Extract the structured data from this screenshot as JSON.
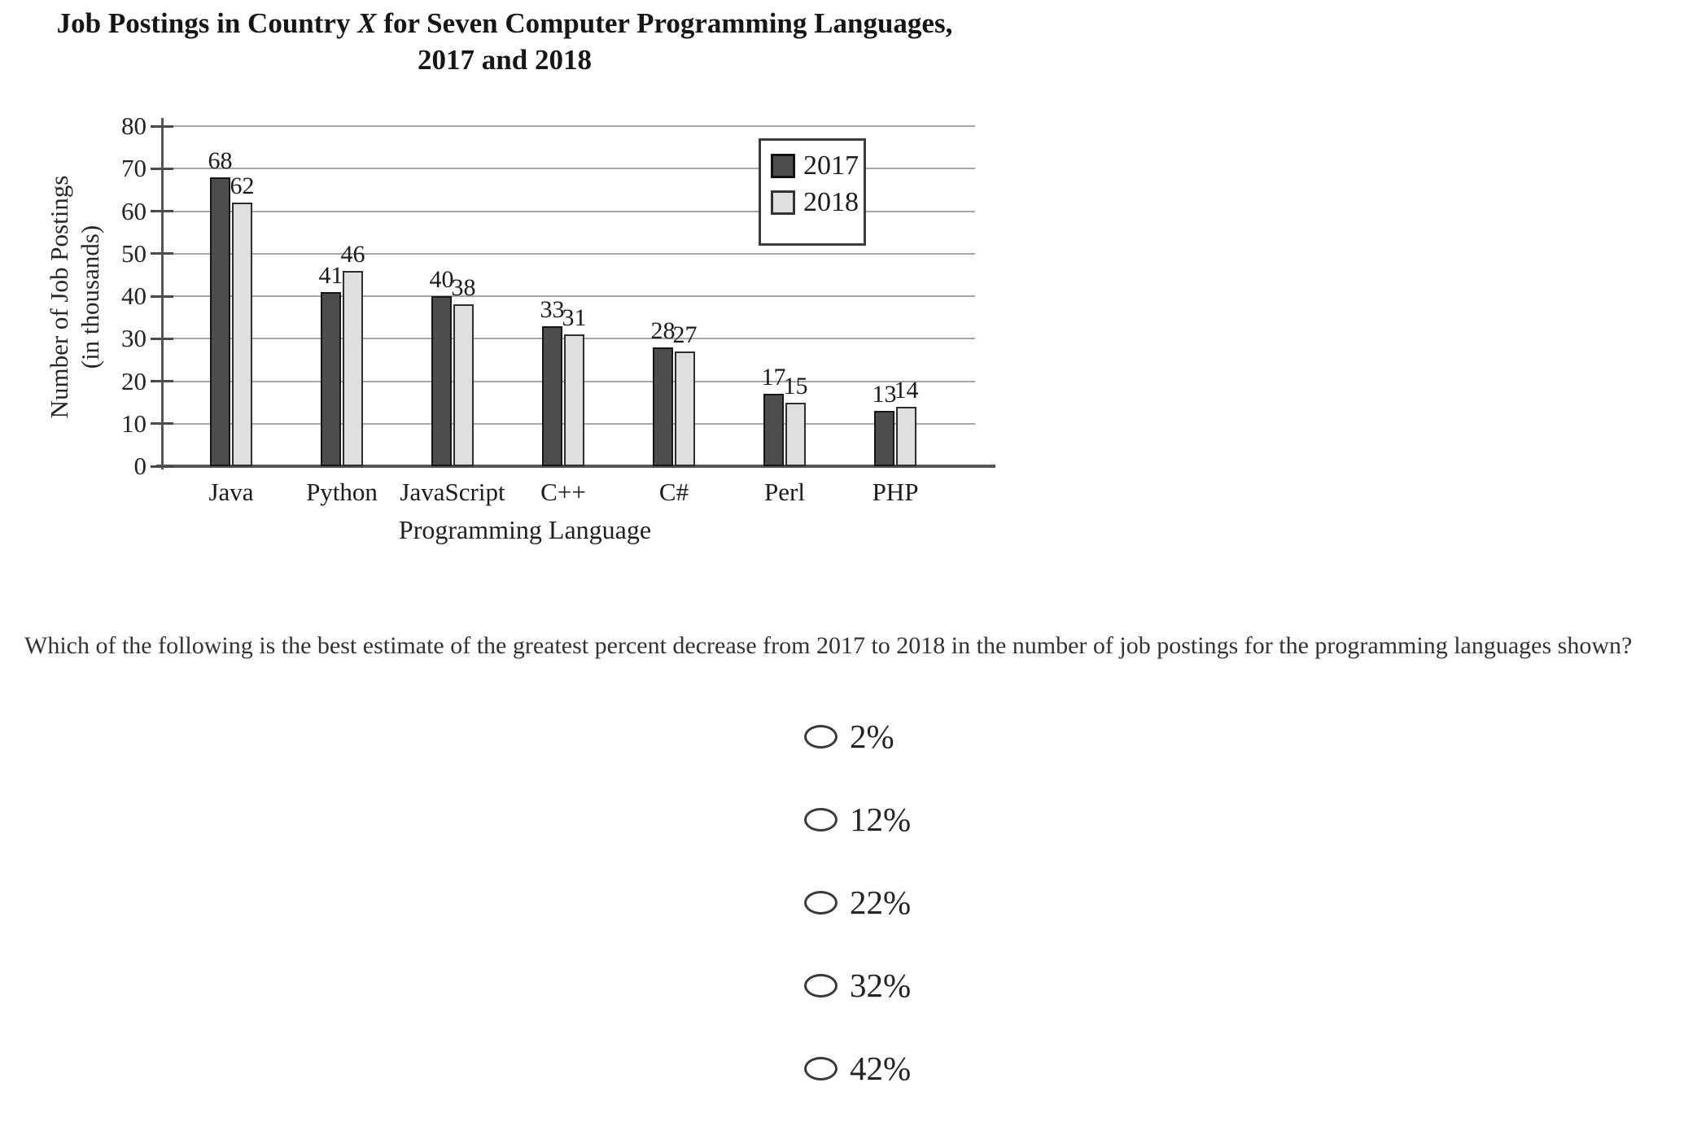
{
  "chart": {
    "title": {
      "line1_pre": "Job Postings in Country ",
      "line1_x": "X",
      "line1_post": " for Seven Computer Programming Languages,",
      "line2": "2017 and 2018"
    }
  },
  "chart_data": {
    "type": "bar",
    "title": "Job Postings in Country X for Seven Computer Programming Languages, 2017 and 2018",
    "categories": [
      "Java",
      "Python",
      "JavaScript",
      "C++",
      "C#",
      "Perl",
      "PHP"
    ],
    "series": [
      {
        "name": "2017",
        "values": [
          68,
          41,
          40,
          33,
          28,
          17,
          13
        ],
        "color": "#4d4d4d"
      },
      {
        "name": "2018",
        "values": [
          62,
          46,
          38,
          31,
          27,
          15,
          14
        ],
        "color": "#dedede"
      }
    ],
    "xlabel": "Programming Language",
    "ylabel": "Number of Job Postings (in thousands)",
    "ylabel_lines": [
      "Number of Job Postings",
      "(in thousands)"
    ],
    "ylim": [
      0,
      80
    ],
    "ytick_step": 10,
    "grid": true,
    "legend_position": "top-right",
    "value_labels": true
  },
  "question": {
    "text": "Which of the following is the best estimate of the greatest percent decrease from 2017 to 2018 in the number of job postings for the programming languages shown?",
    "options": [
      {
        "label": "2%"
      },
      {
        "label": "12%"
      },
      {
        "label": "22%"
      },
      {
        "label": "32%"
      },
      {
        "label": "42%"
      }
    ]
  }
}
